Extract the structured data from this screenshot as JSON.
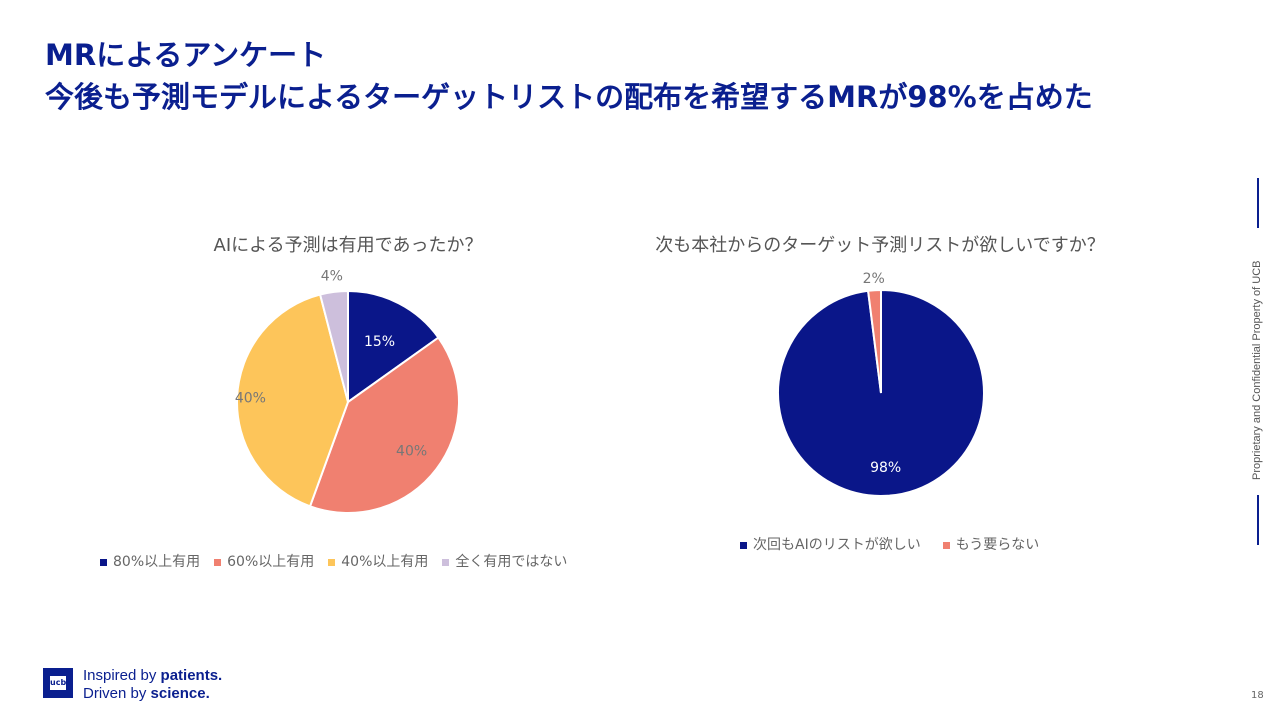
{
  "header": {
    "line1": "MRによるアンケート",
    "line2": "今後も予測モデルによるターゲットリストの配布を希望するMRが98%を占めた"
  },
  "chart_data": [
    {
      "type": "pie",
      "title": "AIによる予測は有用であったか？",
      "categories": [
        "80%以上有用",
        "60%以上有用",
        "40%以上有用",
        "全く有用ではない"
      ],
      "values": [
        15,
        40,
        40,
        4
      ],
      "labels": [
        "15%",
        "40%",
        "40%",
        "4%"
      ],
      "colors": [
        "#0a1689",
        "#f08070",
        "#fdc55a",
        "#cdbfdc"
      ],
      "legend": "bottom"
    },
    {
      "type": "pie",
      "title": "次も本社からのターゲット予測リストが欲しいですか？",
      "categories": [
        "次回もAIのリストが欲しい",
        "もう要らない"
      ],
      "values": [
        98,
        2
      ],
      "labels": [
        "98%",
        "2%"
      ],
      "colors": [
        "#0a1689",
        "#f08070"
      ],
      "legend": "bottom"
    }
  ],
  "footer": {
    "tag1a": "Inspired by ",
    "tag1b": "patients.",
    "tag2a": "Driven by ",
    "tag2b": "science.",
    "logo": "ucb",
    "confidential": "Proprietary and Confidential Property of UCB",
    "page": "18"
  }
}
